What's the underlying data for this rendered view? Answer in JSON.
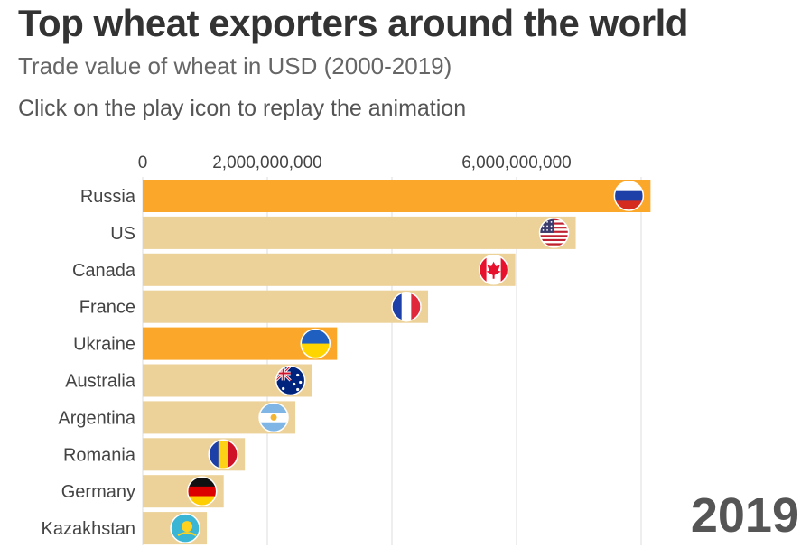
{
  "header": {
    "title": "Top wheat exporters around the world",
    "subtitle": "Trade value of wheat in USD (2000-2019)",
    "note": "Click on the play icon to replay the animation"
  },
  "year": "2019",
  "colors": {
    "bar": "#ecd198",
    "highlight": "#fba72a",
    "grid": "#dddddd"
  },
  "chart_data": {
    "type": "bar",
    "orientation": "horizontal",
    "categories": [
      "Russia",
      "US",
      "Canada",
      "France",
      "Ukraine",
      "Australia",
      "Argentina",
      "Romania",
      "Germany",
      "Kazakhstan"
    ],
    "values": [
      8150000000,
      6950000000,
      5980000000,
      4580000000,
      3120000000,
      2720000000,
      2450000000,
      1640000000,
      1300000000,
      1030000000
    ],
    "highlighted": [
      "Russia",
      "Ukraine"
    ],
    "flags": [
      "russia-flag-icon",
      "us-flag-icon",
      "canada-flag-icon",
      "france-flag-icon",
      "ukraine-flag-icon",
      "australia-flag-icon",
      "argentina-flag-icon",
      "romania-flag-icon",
      "germany-flag-icon",
      "kazakhstan-flag-icon"
    ],
    "xticks": [
      0,
      2000000000,
      6000000000
    ],
    "xtick_labels": [
      "0",
      "2,000,000,000",
      "6,000,000,000"
    ],
    "gridlines": [
      0,
      2000000000,
      4000000000,
      6000000000,
      8000000000
    ],
    "xlim": [
      0,
      8200000000
    ],
    "grid": true
  }
}
